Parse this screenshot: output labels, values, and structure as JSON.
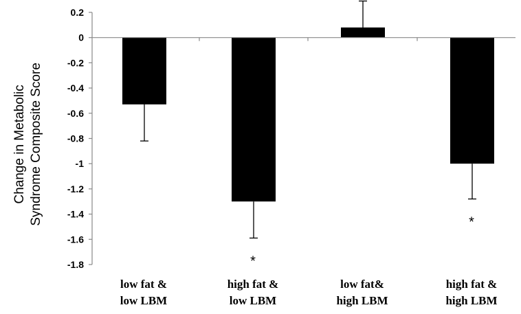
{
  "chart_data": {
    "type": "bar",
    "title": "",
    "ylabel_lines": [
      "Change in Metabolic",
      "Syndrome  Composite Score"
    ],
    "xlabel": "",
    "categories": [
      [
        "low fat &",
        "low LBM"
      ],
      [
        "high fat &",
        "low LBM"
      ],
      [
        "low fat&",
        "high LBM"
      ],
      [
        "high fat &",
        "high LBM"
      ]
    ],
    "values": [
      -0.53,
      -1.3,
      0.08,
      -1.0
    ],
    "error": [
      0.29,
      0.29,
      0.21,
      0.28
    ],
    "significance": [
      "",
      "*",
      "",
      "*"
    ],
    "ylim": [
      -1.8,
      0.2
    ],
    "yticks": [
      "0.2",
      "0",
      "-0.2",
      "-0.4",
      "-0.6",
      "-0.8",
      "-1",
      "-1.2",
      "-1.4",
      "-1.6",
      "-1.8"
    ],
    "grid": false,
    "bar_color": "#000000"
  }
}
